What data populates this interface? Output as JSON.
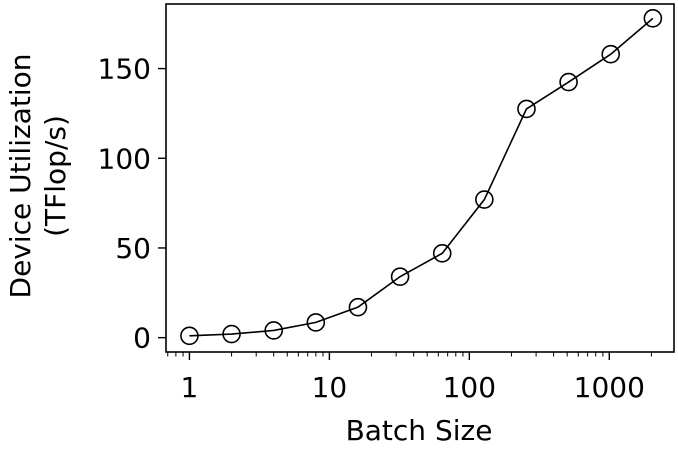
{
  "chart_data": {
    "type": "line",
    "xscale": "log",
    "xlabel": "Batch Size",
    "ylabel_line1": "Device Utilization",
    "ylabel_line2": "(TFlop/s)",
    "xlim": [
      0.68,
      2900
    ],
    "ylim": [
      -8,
      186
    ],
    "x_major_ticks": [
      1,
      10,
      100,
      1000
    ],
    "x_tick_labels": [
      "1",
      "10",
      "100",
      "1000"
    ],
    "y_ticks": [
      0,
      50,
      100,
      150
    ],
    "y_tick_labels": [
      "0",
      "50",
      "100",
      "150"
    ],
    "grid": false,
    "series": [
      {
        "x": [
          1,
          2,
          4,
          8,
          16,
          32,
          64,
          128,
          256,
          512,
          1024,
          2048
        ],
        "y": [
          1,
          2,
          4,
          8.5,
          17,
          34,
          47,
          77,
          127.5,
          142.5,
          158,
          178
        ],
        "marker": "open-circle",
        "color": "#000000"
      }
    ]
  }
}
